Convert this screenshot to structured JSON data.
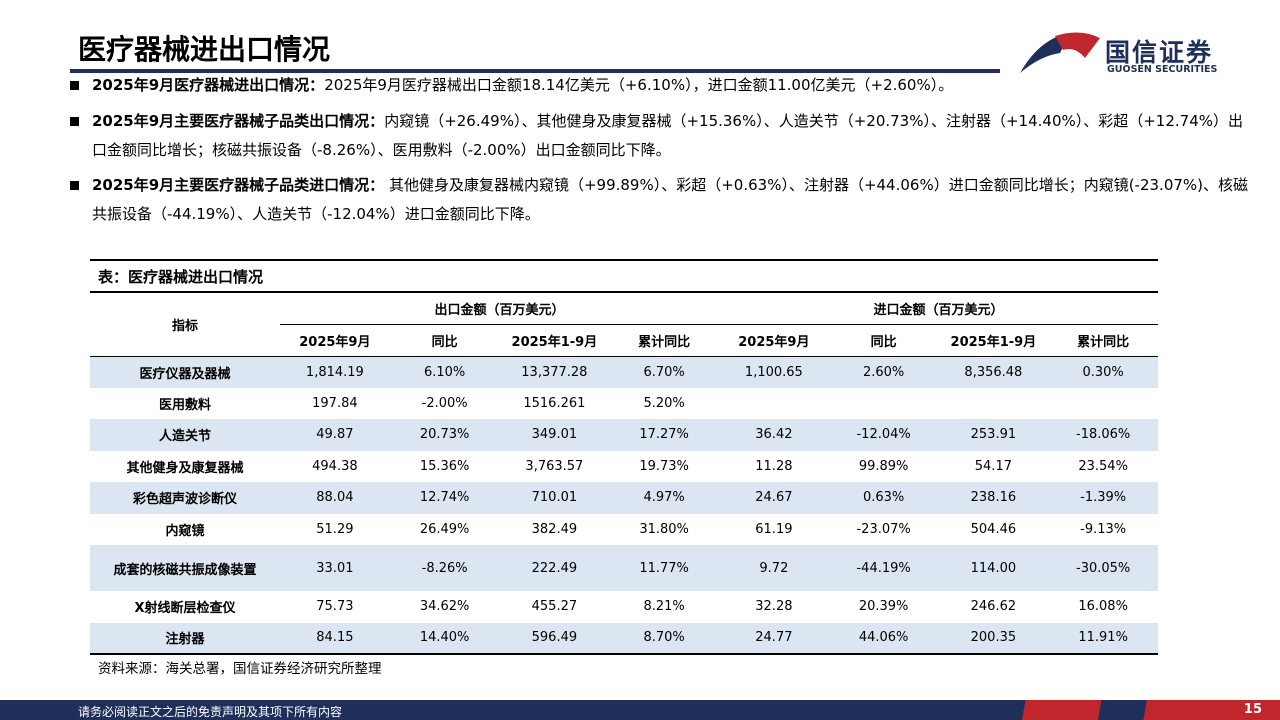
{
  "header": {
    "title": "医疗器械进出口情况"
  },
  "logo": {
    "name": "国信证券",
    "sub": "GUOSEN SECURITIES"
  },
  "bullets": [
    {
      "lead": "2025年9月医疗器械进出口情况：",
      "text": "2025年9月医疗器械出口金额18.14亿美元（+6.10%），进口金额11.00亿美元（+2.60%）。"
    },
    {
      "lead": "2025年9月主要医疗器械子品类出口情况：",
      "text": "内窥镜（+26.49%）、其他健身及康复器械（+15.36%）、人造关节（+20.73%）、注射器（+14.40%）、彩超（+12.74%）出口金额同比增长；核磁共振设备（-8.26%）、医用敷料（-2.00%）出口金额同比下降。"
    },
    {
      "lead": "2025年9月主要医疗器械子品类进口情况：",
      "text": " 其他健身及康复器械内窥镜（+99.89%）、彩超（+0.63%）、注射器（+44.06%）进口金额同比增长；内窥镜(-23.07%)、核磁共振设备（-44.19%）、人造关节（-12.04%）进口金额同比下降。"
    }
  ],
  "table": {
    "caption": "表：医疗器械进出口情况",
    "row_header": "指标",
    "groups": [
      "出口金额（百万美元）",
      "进口金额（百万美元）"
    ],
    "columns": [
      "2025年9月",
      "同比",
      "2025年1-9月",
      "累计同比",
      "2025年9月",
      "同比",
      "2025年1-9月",
      "累计同比"
    ],
    "rows": [
      {
        "name": "医疗仪器及器械",
        "cells": [
          "1,814.19",
          "6.10%",
          "13,377.28",
          "6.70%",
          "1,100.65",
          "2.60%",
          "8,356.48",
          "0.30%"
        ]
      },
      {
        "name": "医用敷料",
        "cells": [
          "197.84",
          "-2.00%",
          "1516.261",
          "5.20%",
          null,
          null,
          null,
          null
        ]
      },
      {
        "name": "人造关节",
        "cells": [
          "49.87",
          "20.73%",
          "349.01",
          "17.27%",
          "36.42",
          "-12.04%",
          "253.91",
          "-18.06%"
        ]
      },
      {
        "name": "其他健身及康复器械",
        "cells": [
          "494.38",
          "15.36%",
          "3,763.57",
          "19.73%",
          "11.28",
          "99.89%",
          "54.17",
          "23.54%"
        ]
      },
      {
        "name": "彩色超声波诊断仪",
        "cells": [
          "88.04",
          "12.74%",
          "710.01",
          "4.97%",
          "24.67",
          "0.63%",
          "238.16",
          "-1.39%"
        ]
      },
      {
        "name": "内窥镜",
        "cells": [
          "51.29",
          "26.49%",
          "382.49",
          "31.80%",
          "61.19",
          "-23.07%",
          "504.46",
          "-9.13%"
        ]
      },
      {
        "name": "成套的核磁共振成像装置",
        "cells": [
          "33.01",
          "-8.26%",
          "222.49",
          "11.77%",
          "9.72",
          "-44.19%",
          "114.00",
          "-30.05%"
        ]
      },
      {
        "name": "X射线断层检查仪",
        "cells": [
          "75.73",
          "34.62%",
          "455.27",
          "8.21%",
          "32.28",
          "20.39%",
          "246.62",
          "16.08%"
        ]
      },
      {
        "name": "注射器",
        "cells": [
          "84.15",
          "14.40%",
          "596.49",
          "8.70%",
          "24.77",
          "44.06%",
          "200.35",
          "11.91%"
        ]
      }
    ],
    "source": "资料来源：海关总署，国信证券经济研究所整理"
  },
  "footer": {
    "disclaimer": "请务必阅读正文之后的免责声明及其项下所有内容",
    "page": "15"
  }
}
